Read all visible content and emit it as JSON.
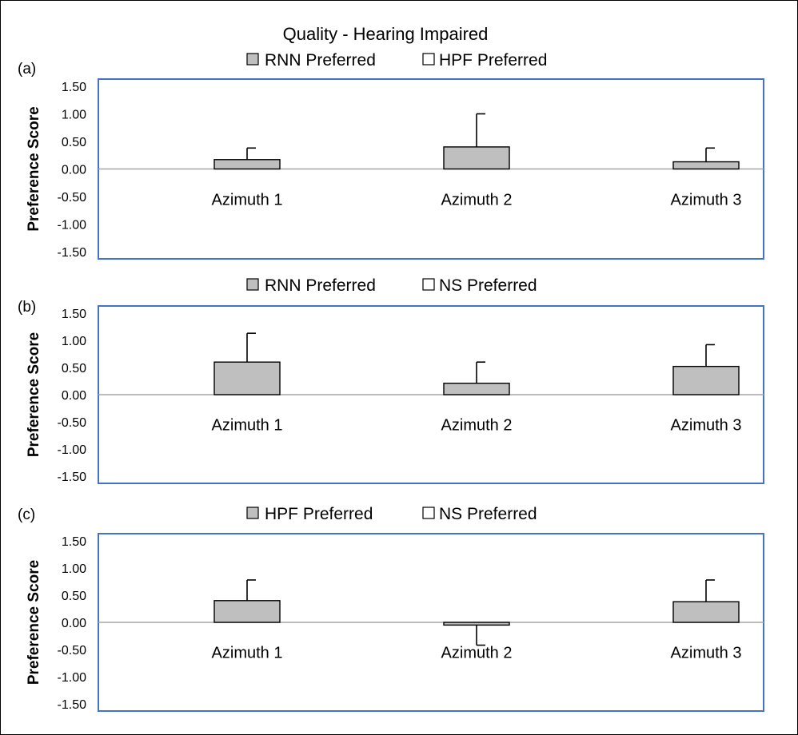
{
  "figure_title": "Quality - Hearing Impaired",
  "colors": {
    "bar_fill": "#bfbfbf",
    "bar_stroke": "#000000",
    "frame": "#4472c4",
    "zero_line": "#a6a6a6",
    "error_bar": "#000000"
  },
  "chart_data": [
    {
      "type": "bar",
      "panel_label": "(a)",
      "legend": [
        {
          "name": "RNN Preferred",
          "fill": "#bfbfbf"
        },
        {
          "name": "HPF Preferred",
          "fill": "#ffffff"
        }
      ],
      "ylabel": "Preference Score",
      "ylim": [
        -1.5,
        1.5
      ],
      "yticks": [
        "1.50",
        "1.00",
        "0.50",
        "0.00",
        "-0.50",
        "-1.00",
        "-1.50"
      ],
      "categories": [
        "Azimuth 1",
        "Azimuth 2",
        "Azimuth 3"
      ],
      "values": [
        0.17,
        0.4,
        0.13
      ],
      "error_upper": [
        0.38,
        1.0,
        0.38
      ],
      "grid": false
    },
    {
      "type": "bar",
      "panel_label": "(b)",
      "legend": [
        {
          "name": "RNN Preferred",
          "fill": "#bfbfbf"
        },
        {
          "name": "NS Preferred",
          "fill": "#ffffff"
        }
      ],
      "ylabel": "Preference Score",
      "ylim": [
        -1.5,
        1.5
      ],
      "yticks": [
        "1.50",
        "1.00",
        "0.50",
        "0.00",
        "-0.50",
        "-1.00",
        "-1.50"
      ],
      "categories": [
        "Azimuth 1",
        "Azimuth 2",
        "Azimuth 3"
      ],
      "values": [
        0.6,
        0.21,
        0.52
      ],
      "error_upper": [
        1.13,
        0.6,
        0.92
      ],
      "grid": false
    },
    {
      "type": "bar",
      "panel_label": "(c)",
      "legend": [
        {
          "name": "HPF Preferred",
          "fill": "#bfbfbf"
        },
        {
          "name": "NS Preferred",
          "fill": "#ffffff"
        }
      ],
      "ylabel": "Preference Score",
      "ylim": [
        -1.5,
        1.5
      ],
      "yticks": [
        "1.50",
        "1.00",
        "0.50",
        "0.00",
        "-0.50",
        "-1.00",
        "-1.50"
      ],
      "categories": [
        "Azimuth 1",
        "Azimuth 2",
        "Azimuth 3"
      ],
      "values": [
        0.4,
        -0.05,
        0.38
      ],
      "error_upper": [
        0.78,
        -0.42,
        0.78
      ],
      "grid": false
    }
  ]
}
